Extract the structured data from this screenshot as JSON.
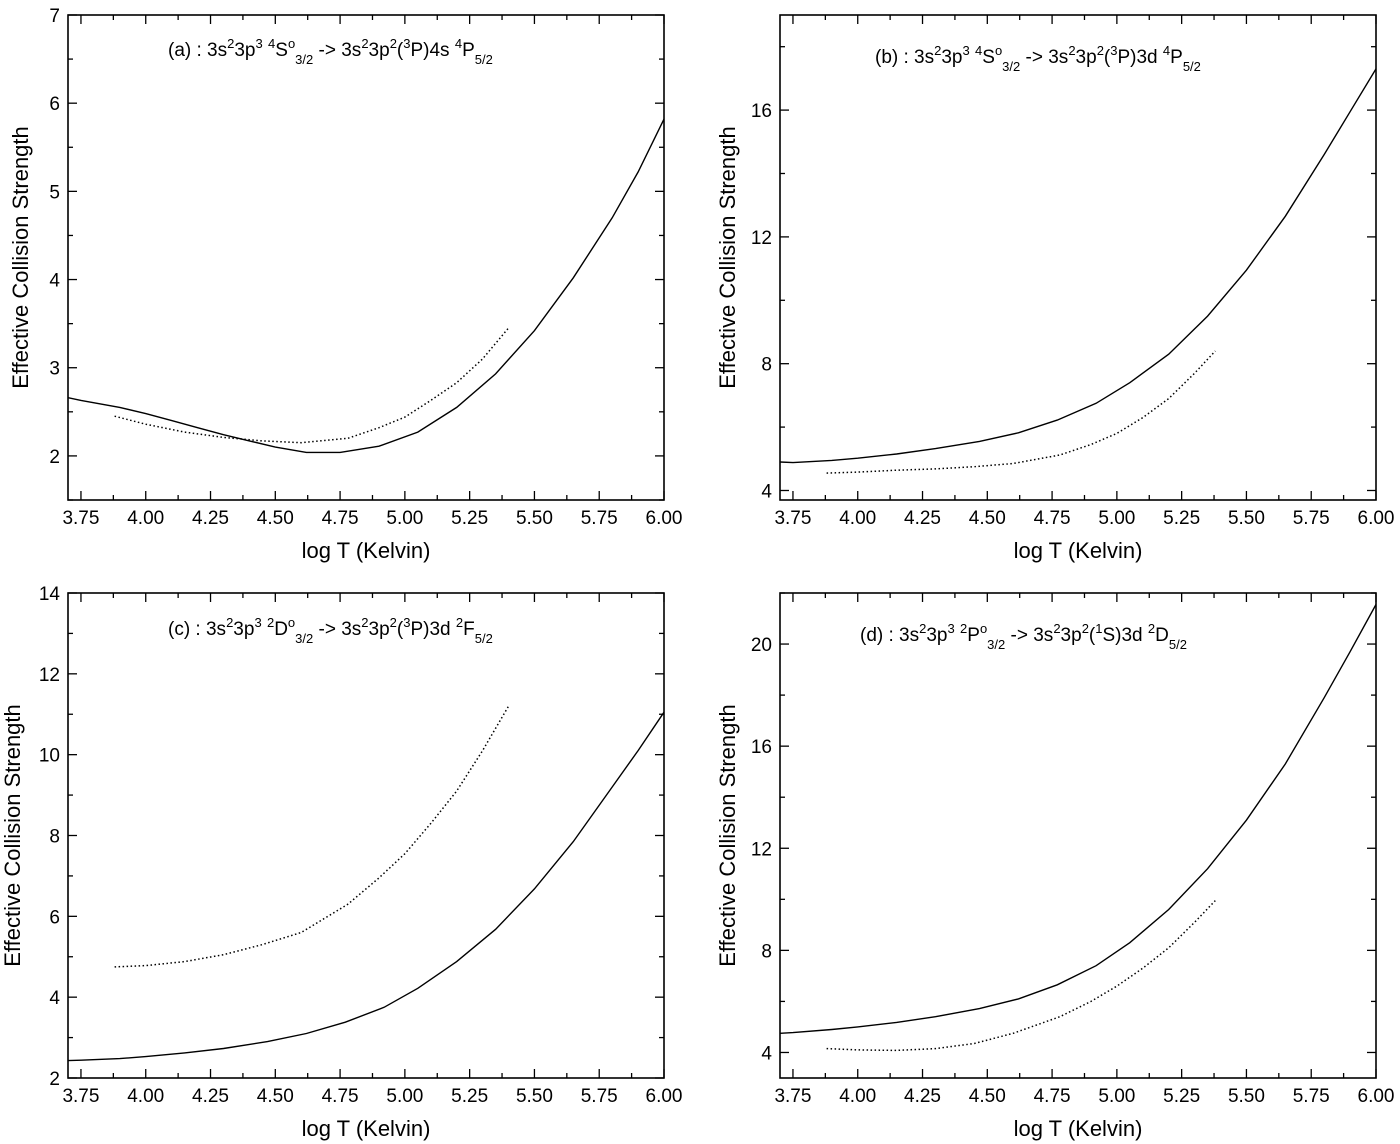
{
  "chart_data": [
    {
      "panel": "a",
      "type": "line",
      "annotation": {
        "text": "(a)  : 3s²3p³ ⁴S°₃/₂ -> 3s²3p²(³P)4s ⁴P₅/₂",
        "runs": [
          {
            "t": "(a)  : 3s",
            "s": ""
          },
          {
            "t": "2",
            "s": "sup"
          },
          {
            "t": "3p",
            "s": ""
          },
          {
            "t": "3",
            "s": "sup"
          },
          {
            "t": " ",
            "s": ""
          },
          {
            "t": "4",
            "s": "sup"
          },
          {
            "t": "S",
            "s": ""
          },
          {
            "t": "o",
            "s": "sup"
          },
          {
            "t": "3/2",
            "s": "sub"
          },
          {
            "t": " -> 3s",
            "s": ""
          },
          {
            "t": "2",
            "s": "sup"
          },
          {
            "t": "3p",
            "s": ""
          },
          {
            "t": "2",
            "s": "sup"
          },
          {
            "t": "(",
            "s": ""
          },
          {
            "t": "3",
            "s": "sup"
          },
          {
            "t": "P)4s ",
            "s": ""
          },
          {
            "t": "4",
            "s": "sup"
          },
          {
            "t": "P",
            "s": ""
          },
          {
            "t": "5/2",
            "s": "sub"
          }
        ]
      },
      "xlabel": "log T (Kelvin)",
      "ylabel": "Effective Collision Strength",
      "xlim": [
        3.7,
        6.0
      ],
      "ylim": [
        1.5,
        7.0
      ],
      "xticks": [
        "3.75",
        "4.00",
        "4.25",
        "4.50",
        "4.75",
        "5.00",
        "5.25",
        "5.50",
        "5.75",
        "6.00"
      ],
      "yticks": [
        "2",
        "3",
        "4",
        "5",
        "6",
        "7"
      ],
      "series": [
        {
          "style": "solid",
          "x": [
            3.7,
            3.75,
            3.9,
            4.0,
            4.1,
            4.2,
            4.3,
            4.4,
            4.5,
            4.62,
            4.75,
            4.9,
            5.05,
            5.2,
            5.35,
            5.5,
            5.65,
            5.8,
            5.9,
            6.0
          ],
          "y": [
            2.66,
            2.63,
            2.55,
            2.48,
            2.4,
            2.32,
            2.24,
            2.17,
            2.1,
            2.04,
            2.04,
            2.11,
            2.27,
            2.55,
            2.93,
            3.42,
            4.02,
            4.7,
            5.22,
            5.82
          ]
        },
        {
          "style": "dotted",
          "x": [
            3.88,
            4.0,
            4.15,
            4.3,
            4.45,
            4.6,
            4.78,
            4.9,
            5.0,
            5.1,
            5.2,
            5.3,
            5.4
          ],
          "y": [
            2.45,
            2.36,
            2.27,
            2.21,
            2.17,
            2.15,
            2.2,
            2.32,
            2.44,
            2.63,
            2.83,
            3.1,
            3.45
          ]
        }
      ]
    },
    {
      "panel": "b",
      "type": "line",
      "annotation": {
        "text": "(b)  : 3s²3p³ ⁴S°₃/₂ -> 3s²3p²(³P)3d ⁴P₅/₂",
        "runs": [
          {
            "t": "(b)  : 3s",
            "s": ""
          },
          {
            "t": "2",
            "s": "sup"
          },
          {
            "t": "3p",
            "s": ""
          },
          {
            "t": "3",
            "s": "sup"
          },
          {
            "t": " ",
            "s": ""
          },
          {
            "t": "4",
            "s": "sup"
          },
          {
            "t": "S",
            "s": ""
          },
          {
            "t": "o",
            "s": "sup"
          },
          {
            "t": "3/2",
            "s": "sub"
          },
          {
            "t": " -> 3s",
            "s": ""
          },
          {
            "t": "2",
            "s": "sup"
          },
          {
            "t": "3p",
            "s": ""
          },
          {
            "t": "2",
            "s": "sup"
          },
          {
            "t": "(",
            "s": ""
          },
          {
            "t": "3",
            "s": "sup"
          },
          {
            "t": "P)3d ",
            "s": ""
          },
          {
            "t": "4",
            "s": "sup"
          },
          {
            "t": "P",
            "s": ""
          },
          {
            "t": "5/2",
            "s": "sub"
          }
        ]
      },
      "xlabel": "log T (Kelvin)",
      "ylabel": "Effective Collision Strength",
      "xlim": [
        3.7,
        6.0
      ],
      "ylim": [
        3.7,
        19.0
      ],
      "xticks": [
        "3.75",
        "4.00",
        "4.25",
        "4.50",
        "4.75",
        "5.00",
        "5.25",
        "5.50",
        "5.75",
        "6.00"
      ],
      "yticks": [
        "4",
        "8",
        "12",
        "16"
      ],
      "series": [
        {
          "style": "solid",
          "x": [
            3.7,
            3.75,
            3.9,
            4.0,
            4.15,
            4.3,
            4.47,
            4.62,
            4.77,
            4.92,
            5.05,
            5.2,
            5.35,
            5.5,
            5.65,
            5.8,
            5.9,
            6.0
          ],
          "y": [
            4.9,
            4.88,
            4.95,
            5.02,
            5.15,
            5.32,
            5.55,
            5.82,
            6.22,
            6.75,
            7.4,
            8.3,
            9.5,
            10.95,
            12.65,
            14.6,
            15.95,
            17.3
          ]
        },
        {
          "style": "dotted",
          "x": [
            3.88,
            4.0,
            4.15,
            4.3,
            4.45,
            4.6,
            4.78,
            4.9,
            5.0,
            5.1,
            5.2,
            5.3,
            5.38
          ],
          "y": [
            4.55,
            4.58,
            4.64,
            4.68,
            4.75,
            4.85,
            5.12,
            5.45,
            5.8,
            6.3,
            6.9,
            7.7,
            8.4
          ]
        }
      ]
    },
    {
      "panel": "c",
      "type": "line",
      "annotation": {
        "text": "(c) : 3s²3p³ ²D°₃/₂ -> 3s²3p²(³P)3d ²F₅/₂",
        "runs": [
          {
            "t": "(c) : 3s",
            "s": ""
          },
          {
            "t": "2",
            "s": "sup"
          },
          {
            "t": "3p",
            "s": ""
          },
          {
            "t": "3",
            "s": "sup"
          },
          {
            "t": " ",
            "s": ""
          },
          {
            "t": "2",
            "s": "sup"
          },
          {
            "t": "D",
            "s": ""
          },
          {
            "t": "o",
            "s": "sup"
          },
          {
            "t": "3/2",
            "s": "sub"
          },
          {
            "t": " -> 3s",
            "s": ""
          },
          {
            "t": "2",
            "s": "sup"
          },
          {
            "t": "3p",
            "s": ""
          },
          {
            "t": "2",
            "s": "sup"
          },
          {
            "t": "(",
            "s": ""
          },
          {
            "t": "3",
            "s": "sup"
          },
          {
            "t": "P)3d ",
            "s": ""
          },
          {
            "t": "2",
            "s": "sup"
          },
          {
            "t": "F",
            "s": ""
          },
          {
            "t": "5/2",
            "s": "sub"
          }
        ]
      },
      "xlabel": "log T (Kelvin)",
      "ylabel": "Effective Collision Strength",
      "xlim": [
        3.7,
        6.0
      ],
      "ylim": [
        2.0,
        14.0
      ],
      "xticks": [
        "3.75",
        "4.00",
        "4.25",
        "4.50",
        "4.75",
        "5.00",
        "5.25",
        "5.50",
        "5.75",
        "6.00"
      ],
      "yticks": [
        "2",
        "4",
        "6",
        "8",
        "10",
        "12",
        "14"
      ],
      "series": [
        {
          "style": "solid",
          "x": [
            3.7,
            3.75,
            3.9,
            4.0,
            4.15,
            4.3,
            4.47,
            4.62,
            4.77,
            4.92,
            5.05,
            5.2,
            5.35,
            5.5,
            5.65,
            5.8,
            5.9,
            6.0
          ],
          "y": [
            2.43,
            2.44,
            2.48,
            2.53,
            2.62,
            2.73,
            2.9,
            3.1,
            3.38,
            3.75,
            4.22,
            4.88,
            5.68,
            6.68,
            7.85,
            9.2,
            10.1,
            11.05
          ]
        },
        {
          "style": "dotted",
          "x": [
            3.88,
            4.0,
            4.15,
            4.3,
            4.45,
            4.6,
            4.78,
            4.9,
            5.0,
            5.1,
            5.2,
            5.3,
            5.4
          ],
          "y": [
            4.75,
            4.78,
            4.88,
            5.05,
            5.3,
            5.6,
            6.3,
            6.95,
            7.55,
            8.3,
            9.1,
            10.1,
            11.2
          ]
        }
      ]
    },
    {
      "panel": "d",
      "type": "line",
      "annotation": {
        "text": "(d) : 3s²3p³ ²P°₃/₂ -> 3s²3p²(¹S)3d ²D₅/₂",
        "runs": [
          {
            "t": "(d) : 3s",
            "s": ""
          },
          {
            "t": "2",
            "s": "sup"
          },
          {
            "t": "3p",
            "s": ""
          },
          {
            "t": "3",
            "s": "sup"
          },
          {
            "t": " ",
            "s": ""
          },
          {
            "t": "2",
            "s": "sup"
          },
          {
            "t": "P",
            "s": ""
          },
          {
            "t": "o",
            "s": "sup"
          },
          {
            "t": "3/2",
            "s": "sub"
          },
          {
            "t": " -> 3s",
            "s": ""
          },
          {
            "t": "2",
            "s": "sup"
          },
          {
            "t": "3p",
            "s": ""
          },
          {
            "t": "2",
            "s": "sup"
          },
          {
            "t": "(",
            "s": ""
          },
          {
            "t": "1",
            "s": "sup"
          },
          {
            "t": "S)3d ",
            "s": ""
          },
          {
            "t": "2",
            "s": "sup"
          },
          {
            "t": "D",
            "s": ""
          },
          {
            "t": "5/2",
            "s": "sub"
          }
        ]
      },
      "xlabel": "log T (Kelvin)",
      "ylabel": "Effective Collision Strength",
      "xlim": [
        3.7,
        6.0
      ],
      "ylim": [
        3.0,
        22.0
      ],
      "xticks": [
        "3.75",
        "4.00",
        "4.25",
        "4.50",
        "4.75",
        "5.00",
        "5.25",
        "5.50",
        "5.75",
        "6.00"
      ],
      "yticks": [
        "4",
        "8",
        "12",
        "16",
        "20"
      ],
      "series": [
        {
          "style": "solid",
          "x": [
            3.7,
            3.75,
            3.9,
            4.0,
            4.15,
            4.3,
            4.47,
            4.62,
            4.77,
            4.92,
            5.05,
            5.2,
            5.35,
            5.5,
            5.65,
            5.8,
            5.9,
            6.0
          ],
          "y": [
            4.75,
            4.78,
            4.9,
            5.0,
            5.18,
            5.4,
            5.72,
            6.1,
            6.65,
            7.4,
            8.3,
            9.6,
            11.2,
            13.1,
            15.3,
            17.9,
            19.7,
            21.55
          ]
        },
        {
          "style": "dotted",
          "x": [
            3.88,
            4.0,
            4.15,
            4.3,
            4.45,
            4.6,
            4.78,
            4.9,
            5.0,
            5.1,
            5.2,
            5.3,
            5.38
          ],
          "y": [
            4.15,
            4.1,
            4.08,
            4.15,
            4.35,
            4.75,
            5.4,
            6.0,
            6.6,
            7.3,
            8.1,
            9.1,
            9.95
          ]
        }
      ]
    }
  ]
}
